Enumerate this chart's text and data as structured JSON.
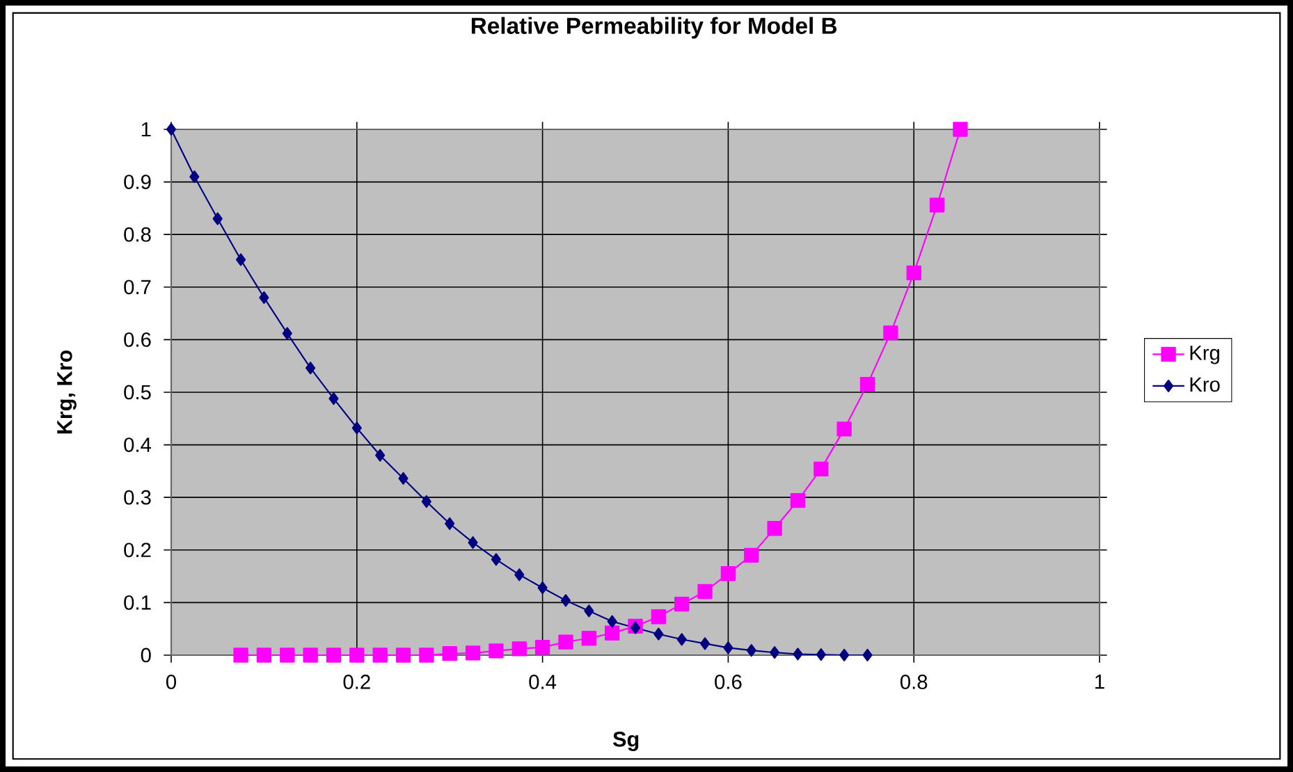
{
  "chart_data": {
    "type": "line",
    "title": "Relative Permeability for Model B",
    "xlabel": "Sg",
    "ylabel": "Krg, Kro",
    "xlim": [
      0,
      1
    ],
    "xticks": [
      0,
      0.2,
      0.4,
      0.6,
      0.8,
      1
    ],
    "ylim": [
      0,
      1
    ],
    "yticks": [
      0,
      0.1,
      0.2,
      0.3,
      0.4,
      0.5,
      0.6,
      0.7,
      0.8,
      0.9,
      1
    ],
    "grid": true,
    "legend": "right",
    "line_style": "solid",
    "series": [
      {
        "name": "Krg",
        "color": "#ff00ff",
        "marker": "square",
        "x": [
          0.075,
          0.1,
          0.125,
          0.15,
          0.175,
          0.2,
          0.225,
          0.25,
          0.275,
          0.3,
          0.325,
          0.35,
          0.375,
          0.4,
          0.425,
          0.45,
          0.475,
          0.5,
          0.525,
          0.55,
          0.575,
          0.6,
          0.625,
          0.65,
          0.675,
          0.7,
          0.725,
          0.75,
          0.775,
          0.8,
          0.825,
          0.85
        ],
        "values": [
          0,
          0,
          0,
          0,
          0,
          0,
          0,
          0,
          0,
          0.003,
          0.004,
          0.008,
          0.012,
          0.015,
          0.025,
          0.032,
          0.042,
          0.055,
          0.073,
          0.097,
          0.121,
          0.155,
          0.19,
          0.241,
          0.294,
          0.354,
          0.43,
          0.515,
          0.613,
          0.727,
          0.856,
          1.0
        ]
      },
      {
        "name": "Kro",
        "color": "#000080",
        "marker": "diamond",
        "x": [
          0,
          0.025,
          0.05,
          0.075,
          0.1,
          0.125,
          0.15,
          0.175,
          0.2,
          0.225,
          0.25,
          0.275,
          0.3,
          0.325,
          0.35,
          0.375,
          0.4,
          0.425,
          0.45,
          0.475,
          0.5,
          0.525,
          0.55,
          0.575,
          0.6,
          0.625,
          0.65,
          0.675,
          0.7,
          0.725,
          0.75
        ],
        "values": [
          1.0,
          0.91,
          0.83,
          0.752,
          0.68,
          0.612,
          0.546,
          0.488,
          0.432,
          0.38,
          0.336,
          0.292,
          0.25,
          0.214,
          0.182,
          0.153,
          0.128,
          0.104,
          0.084,
          0.064,
          0.052,
          0.04,
          0.03,
          0.022,
          0.014,
          0.009,
          0.005,
          0.002,
          0.001,
          0,
          0
        ]
      }
    ]
  }
}
